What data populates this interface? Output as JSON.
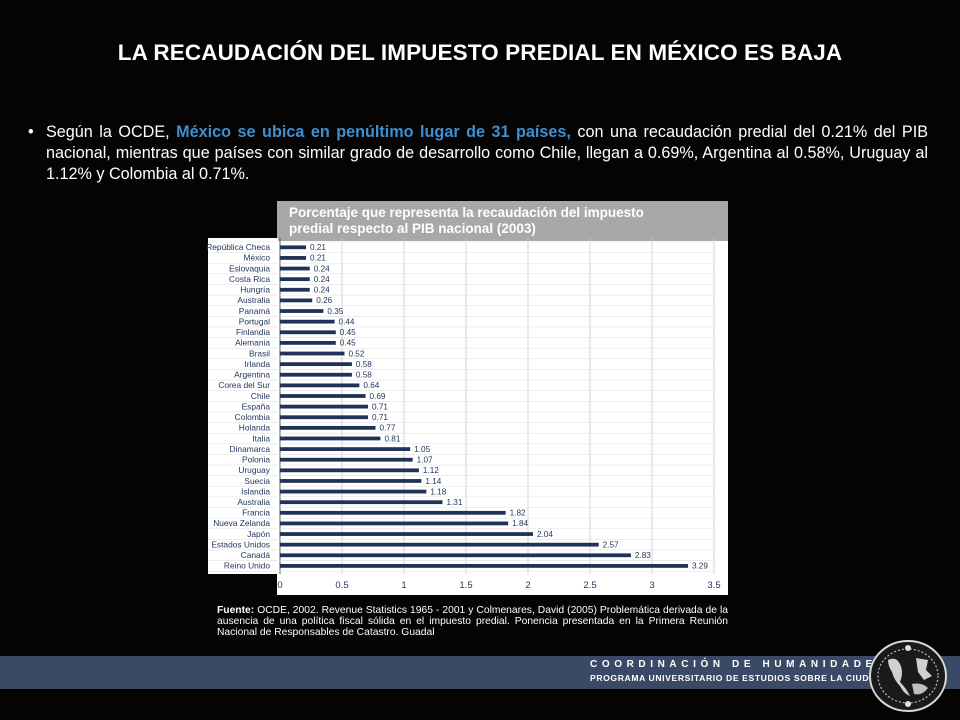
{
  "title": "LA RECAUDACIÓN DEL IMPUESTO PREDIAL EN MÉXICO ES BAJA",
  "bullet": {
    "before": "Según la OCDE, ",
    "highlight": "México se ubica en penúltimo lugar de 31 países,",
    "after": " con una recaudación predial del 0.21% del PIB nacional, mientras que países con similar grado de desarrollo como Chile, llegan a 0.69%, Argentina al 0.58%, Uruguay al 1.12% y Colombia al 0.71%."
  },
  "chart_header": {
    "line1": "Porcentaje que representa la recaudación del impuesto",
    "line2": "predial respecto al PIB nacional (2003)"
  },
  "chart_data": {
    "type": "bar",
    "orientation": "horizontal",
    "title": "Porcentaje que representa la recaudación del impuesto predial respecto al PIB nacional (2003)",
    "categories": [
      "República Checa",
      "México",
      "Eslovaquia",
      "Costa Rica",
      "Hungría",
      "Australia",
      "Panamá",
      "Portugal",
      "Finlandia",
      "Alemania",
      "Brasil",
      "Irlanda",
      "Argentina",
      "Corea del Sur",
      "Chile",
      "España",
      "Colombia",
      "Holanda",
      "Italia",
      "Dinamarca",
      "Polonia",
      "Uruguay",
      "Suecia",
      "Islandia",
      "Australia",
      "Francia",
      "Nueva Zelanda",
      "Japón",
      "Estados Unidos",
      "Canadá",
      "Reino Unido"
    ],
    "values": [
      0.21,
      0.21,
      0.24,
      0.24,
      0.24,
      0.26,
      0.35,
      0.44,
      0.45,
      0.45,
      0.52,
      0.58,
      0.58,
      0.64,
      0.69,
      0.71,
      0.71,
      0.77,
      0.81,
      1.05,
      1.07,
      1.12,
      1.14,
      1.18,
      1.31,
      1.82,
      1.84,
      2.04,
      2.57,
      2.83,
      3.29
    ],
    "value_labels": [
      "0.21",
      "0.21",
      "0.24",
      "0.24",
      "0.24",
      "0.26",
      "0.35",
      "0.44",
      "0.45",
      "0.45",
      "0.52",
      "0.58",
      "0.58",
      "0.64",
      "0.69",
      "0.71",
      "0.71",
      "0.77",
      "0.81",
      "1.05",
      "1.07",
      "1.12",
      "1.14",
      "1.18",
      "1.31",
      "1.82",
      "1.84",
      "2.04",
      "2.57",
      "2.83",
      "3.29"
    ],
    "xlim": [
      0,
      3.5
    ],
    "xticks": [
      "0",
      "0.5",
      "1",
      "1.5",
      "2",
      "2.5",
      "3",
      "3.5"
    ],
    "grid": true,
    "colors": {
      "bar": "#1f3358",
      "grid": "#c8c8c8"
    }
  },
  "source": {
    "label": "Fuente:",
    "text": " OCDE, 2002. Revenue Statistics 1965 - 2001 y Colmenares, David (2005) Problemática derivada de la ausencia de una política fiscal sólida en el impuesto predial. Ponencia presentada en la Primera Reunión Nacional de Responsables de Catastro. Guadal"
  },
  "footer": {
    "line1": "COORDINACIÓN DE HUMANIDADES",
    "line2": "PROGRAMA UNIVERSITARIO DE ESTUDIOS SOBRE LA CIUDAD",
    "bar_color": "#3a4a66"
  },
  "logo": {
    "icon": "unam-seal-icon"
  }
}
